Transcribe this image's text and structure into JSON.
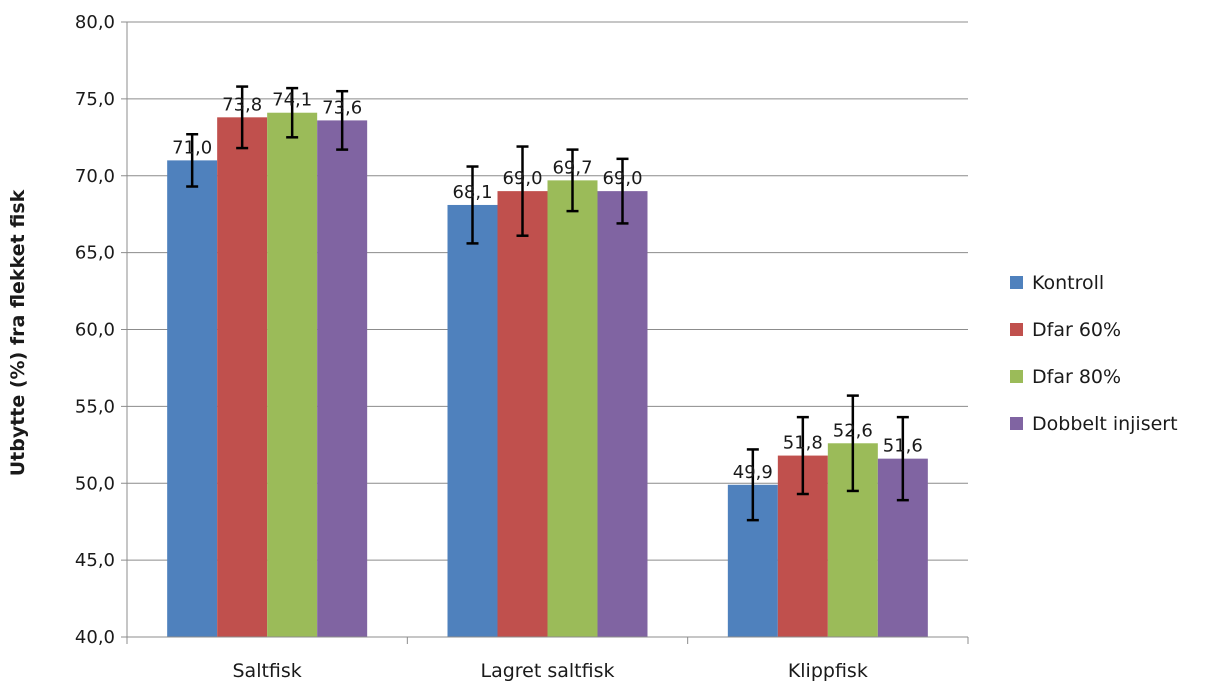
{
  "chart_data": {
    "type": "bar",
    "title": "",
    "xlabel": "",
    "ylabel": "Utbytte (%) fra flekket fisk",
    "ylim": [
      40,
      80
    ],
    "ytick_step": 5,
    "ytick_labels": [
      "40,0",
      "45,0",
      "50,0",
      "55,0",
      "60,0",
      "65,0",
      "70,0",
      "75,0",
      "80,0"
    ],
    "grid": true,
    "legend_position": "right",
    "categories": [
      "Saltfisk",
      "Lagret saltfisk",
      "Klippfisk"
    ],
    "series": [
      {
        "name": "Kontroll",
        "color": "#4f81bd",
        "values": [
          71.0,
          68.1,
          49.9
        ],
        "labels": [
          "71,0",
          "68,1",
          "49,9"
        ],
        "error": [
          1.7,
          2.5,
          2.3
        ]
      },
      {
        "name": "Dfar 60%",
        "color": "#c0504d",
        "values": [
          73.8,
          69.0,
          51.8
        ],
        "labels": [
          "73,8",
          "69,0",
          "51,8"
        ],
        "error": [
          2.0,
          2.9,
          2.5
        ]
      },
      {
        "name": "Dfar 80%",
        "color": "#9bbb59",
        "values": [
          74.1,
          69.7,
          52.6
        ],
        "labels": [
          "74,1",
          "69,7",
          "52,6"
        ],
        "error": [
          1.6,
          2.0,
          3.1
        ]
      },
      {
        "name": "Dobbelt injisert",
        "color": "#8064a2",
        "values": [
          73.6,
          69.0,
          51.6
        ],
        "labels": [
          "73,6",
          "69,0",
          "51,6"
        ],
        "error": [
          1.9,
          2.1,
          2.7
        ]
      }
    ]
  }
}
